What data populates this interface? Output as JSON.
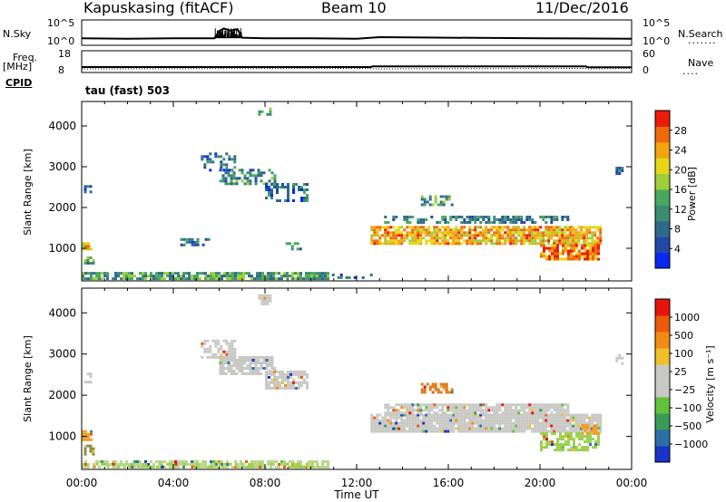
{
  "header": {
    "station": "Kapuskasing (fitACF)",
    "beam": "Beam 10",
    "date": "11/Dec/2016"
  },
  "side_labels": {
    "nsky": "N.Sky",
    "nsky_ticks": [
      "10^5",
      "10^0"
    ],
    "nsearch": "N.Search",
    "nsearch_ticks": [
      "10^5",
      "10^0"
    ],
    "freq": "Freq.",
    "freq_unit": "[MHz]",
    "freq_ticks": [
      "18",
      "8"
    ],
    "nave": "Nave",
    "nave_ticks": [
      "60",
      "0"
    ],
    "cpid": "CPID",
    "cpid_value": "tau (fast) 503"
  },
  "chart_data": [
    {
      "type": "line",
      "panel": "noise",
      "series": [
        {
          "name": "N.Sky",
          "style": "solid"
        },
        {
          "name": "N.Search",
          "style": "dotted"
        }
      ],
      "x_hours": [
        0,
        2,
        4,
        5.8,
        6.0,
        6.2,
        6.5,
        6.8,
        7.0,
        8,
        10,
        12,
        13,
        16,
        20,
        24
      ],
      "values_log10": [
        1.4,
        1.3,
        1.4,
        1.4,
        2.8,
        3.3,
        2.9,
        3.2,
        1.5,
        1.4,
        1.4,
        1.3,
        1.6,
        1.5,
        1.4,
        1.3
      ],
      "ylim": [
        0,
        5
      ]
    },
    {
      "type": "line",
      "panel": "frequency",
      "series": [
        {
          "name": "Freq.",
          "style": "solid"
        },
        {
          "name": "Nave",
          "style": "dotted"
        }
      ],
      "x_hours": [
        0,
        12.6,
        12.7,
        22.0,
        22.1,
        24
      ],
      "freq_mhz": [
        10.5,
        10.5,
        10.8,
        10.8,
        10.4,
        10.4
      ],
      "ylim": [
        8,
        18
      ]
    },
    {
      "type": "heatmap",
      "panel": "power",
      "xlabel": "",
      "ylabel": "Slant Range [km]",
      "xlim": [
        0,
        24
      ],
      "ylim": [
        200,
        4600
      ],
      "x_ticks": [
        "00:00",
        "04:00",
        "08:00",
        "12:00",
        "16:00",
        "20:00",
        "00:00"
      ],
      "y_ticks": [
        1000,
        2000,
        3000,
        4000
      ],
      "colorbar": {
        "label": "Power [dB]",
        "ticks": [
          "28",
          "24",
          "20",
          "16",
          "12",
          "8",
          "4"
        ],
        "range": [
          0,
          30
        ],
        "colors": [
          "#0b27f2",
          "#2448a8",
          "#2d6a8a",
          "#3c8c74",
          "#4aa85e",
          "#9ccf3a",
          "#e6d614",
          "#f3a40f",
          "#f06a0c",
          "#ec1b0a"
        ]
      },
      "regions": [
        {
          "t0": 0.0,
          "t1": 10.8,
          "r0": 250,
          "r1": 420,
          "level": 12,
          "density": 0.85
        },
        {
          "t0": 10.8,
          "t1": 12.6,
          "r0": 250,
          "r1": 380,
          "level": 6,
          "density": 0.4
        },
        {
          "t0": 6.0,
          "t1": 8.4,
          "r0": 2550,
          "r1": 2950,
          "level": 10,
          "density": 0.55
        },
        {
          "t0": 8.0,
          "t1": 9.8,
          "r0": 2150,
          "r1": 2600,
          "level": 8,
          "density": 0.5
        },
        {
          "t0": 5.2,
          "t1": 6.7,
          "r0": 2900,
          "r1": 3350,
          "level": 7,
          "density": 0.4
        },
        {
          "t0": 7.7,
          "t1": 8.2,
          "r0": 4250,
          "r1": 4450,
          "level": 10,
          "density": 0.6
        },
        {
          "t0": 0.0,
          "t1": 0.4,
          "r0": 950,
          "r1": 1150,
          "level": 22,
          "density": 0.9
        },
        {
          "t0": 0.1,
          "t1": 0.5,
          "r0": 600,
          "r1": 800,
          "level": 10,
          "density": 0.7
        },
        {
          "t0": 0.1,
          "t1": 0.4,
          "r0": 2350,
          "r1": 2550,
          "level": 8,
          "density": 0.5
        },
        {
          "t0": 4.3,
          "t1": 5.6,
          "r0": 1100,
          "r1": 1250,
          "level": 8,
          "density": 0.5
        },
        {
          "t0": 8.9,
          "t1": 9.6,
          "r0": 950,
          "r1": 1150,
          "level": 10,
          "density": 0.6
        },
        {
          "t0": 12.6,
          "t1": 22.6,
          "r0": 1100,
          "r1": 1550,
          "level": 22,
          "density": 0.85
        },
        {
          "t0": 13.2,
          "t1": 21.2,
          "r0": 1600,
          "r1": 1800,
          "level": 9,
          "density": 0.6
        },
        {
          "t0": 20.0,
          "t1": 22.5,
          "r0": 700,
          "r1": 1100,
          "level": 24,
          "density": 0.8
        },
        {
          "t0": 14.8,
          "t1": 16.2,
          "r0": 2050,
          "r1": 2300,
          "level": 12,
          "density": 0.6
        },
        {
          "t0": 23.3,
          "t1": 23.6,
          "r0": 2800,
          "r1": 3000,
          "level": 8,
          "density": 0.6
        }
      ]
    },
    {
      "type": "heatmap",
      "panel": "velocity",
      "xlabel": "Time UT",
      "ylabel": "Slant Range [km]",
      "xlim": [
        0,
        24
      ],
      "ylim": [
        200,
        4600
      ],
      "x_ticks": [
        "00:00",
        "04:00",
        "08:00",
        "12:00",
        "16:00",
        "20:00",
        "00:00"
      ],
      "y_ticks": [
        1000,
        2000,
        3000,
        4000
      ],
      "colorbar": {
        "label": "Velocity [m s⁻¹]",
        "ticks": [
          "1000",
          "500",
          "100",
          "25",
          "−25",
          "−100",
          "−500",
          "−1000"
        ],
        "colors": [
          "#1a33c8",
          "#2c6fa6",
          "#3a9a5a",
          "#62c23a",
          "#c8c8c4",
          "#c8c8c4",
          "#f0c028",
          "#f08c14",
          "#ec5a0e",
          "#e8140c"
        ]
      },
      "regions": [
        {
          "t0": 0.0,
          "t1": 10.8,
          "r0": 250,
          "r1": 420,
          "color": "#b9d88a",
          "density": 0.7
        },
        {
          "t0": 0.5,
          "t1": 10.5,
          "r0": 260,
          "r1": 360,
          "color": "#9ccf50",
          "density": 0.35
        },
        {
          "t0": 6.0,
          "t1": 8.4,
          "r0": 2550,
          "r1": 2950,
          "color": "#c8c8c4",
          "density": 0.8
        },
        {
          "t0": 8.0,
          "t1": 9.8,
          "r0": 2150,
          "r1": 2600,
          "color": "#c8c8c4",
          "density": 0.7
        },
        {
          "t0": 5.2,
          "t1": 6.7,
          "r0": 2900,
          "r1": 3350,
          "color": "#c8c8c4",
          "density": 0.6
        },
        {
          "t0": 7.7,
          "t1": 8.2,
          "r0": 4250,
          "r1": 4450,
          "color": "#c8c8c4",
          "density": 0.8
        },
        {
          "t0": 12.6,
          "t1": 22.6,
          "r0": 1100,
          "r1": 1550,
          "color": "#c8c8c4",
          "density": 0.95
        },
        {
          "t0": 13.2,
          "t1": 21.2,
          "r0": 1600,
          "r1": 1800,
          "color": "#c8c8c4",
          "density": 0.8
        },
        {
          "t0": 14.8,
          "t1": 16.2,
          "r0": 2050,
          "r1": 2300,
          "color": "#e07a1c",
          "density": 0.6
        },
        {
          "t0": 20.0,
          "t1": 22.5,
          "r0": 700,
          "r1": 1100,
          "color": "#9ccf50",
          "density": 0.6
        },
        {
          "t0": 21.8,
          "t1": 22.6,
          "r0": 1100,
          "r1": 1300,
          "color": "#f0a028",
          "density": 0.7
        },
        {
          "t0": 0.0,
          "t1": 0.4,
          "r0": 950,
          "r1": 1150,
          "color": "#f0a028",
          "density": 0.9
        },
        {
          "t0": 0.1,
          "t1": 0.5,
          "r0": 600,
          "r1": 800,
          "color": "#8c8c3c",
          "density": 0.7
        },
        {
          "t0": 0.1,
          "t1": 0.4,
          "r0": 2350,
          "r1": 2550,
          "color": "#c8c8c4",
          "density": 0.6
        },
        {
          "t0": 23.3,
          "t1": 23.6,
          "r0": 2800,
          "r1": 3000,
          "color": "#c8c8c4",
          "density": 0.6
        }
      ]
    }
  ]
}
